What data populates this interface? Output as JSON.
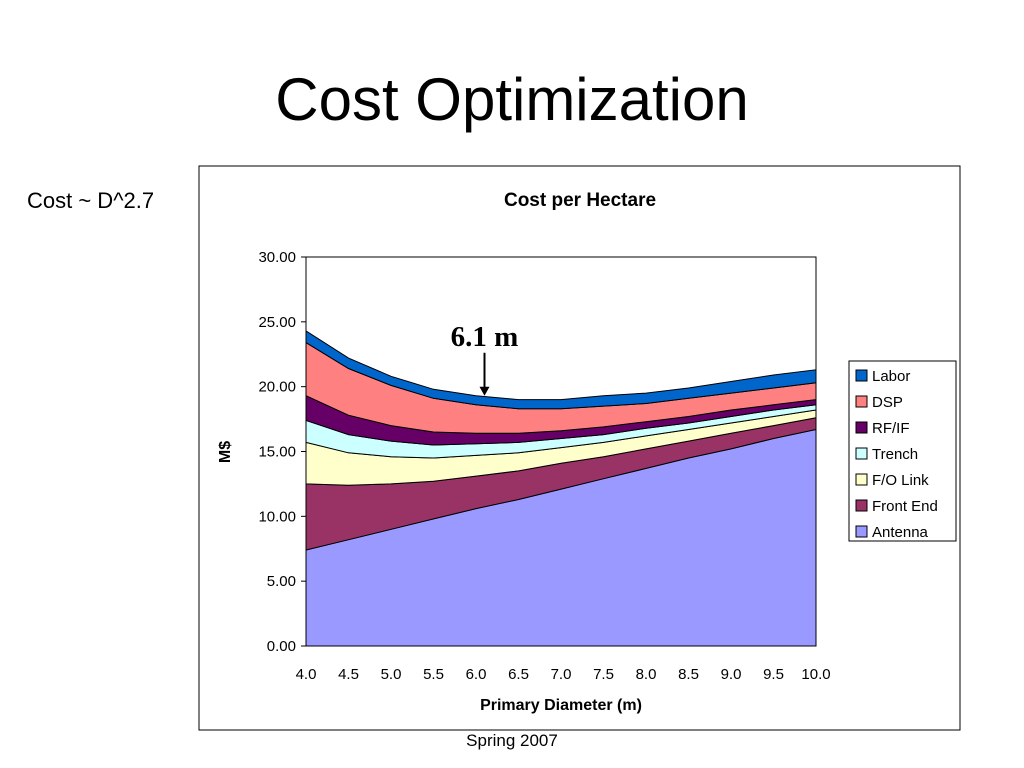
{
  "slide": {
    "title": "Cost Optimization",
    "side_note": "Cost ~ D^2.7",
    "footer": "Spring 2007"
  },
  "chart_data": {
    "type": "area",
    "stacked": true,
    "title": "Cost per Hectare",
    "xlabel": "Primary Diameter (m)",
    "ylabel": "M$",
    "x": [
      "4.0",
      "4.5",
      "5.0",
      "5.5",
      "6.0",
      "6.5",
      "7.0",
      "7.5",
      "8.0",
      "8.5",
      "9.0",
      "9.5",
      "10.0"
    ],
    "ylim": [
      0,
      30
    ],
    "yticks": [
      "0.00",
      "5.00",
      "10.00",
      "15.00",
      "20.00",
      "25.00",
      "30.00"
    ],
    "grid": true,
    "legend_position": "right",
    "series": [
      {
        "name": "Antenna",
        "color": "#9999FF",
        "values": [
          7.4,
          8.2,
          9.0,
          9.8,
          10.6,
          11.3,
          12.1,
          12.9,
          13.7,
          14.5,
          15.2,
          16.0,
          16.7
        ]
      },
      {
        "name": "Front End",
        "color": "#993366",
        "values": [
          5.1,
          4.2,
          3.5,
          2.9,
          2.5,
          2.2,
          2.0,
          1.7,
          1.5,
          1.3,
          1.2,
          1.0,
          0.9
        ]
      },
      {
        "name": "F/O Link",
        "color": "#FFFFCC",
        "values": [
          3.2,
          2.5,
          2.1,
          1.8,
          1.6,
          1.4,
          1.2,
          1.1,
          1.0,
          0.9,
          0.8,
          0.7,
          0.6
        ]
      },
      {
        "name": "Trench",
        "color": "#CCFFFF",
        "values": [
          1.7,
          1.4,
          1.2,
          1.0,
          0.9,
          0.8,
          0.7,
          0.6,
          0.6,
          0.5,
          0.5,
          0.5,
          0.4
        ]
      },
      {
        "name": "RF/IF",
        "color": "#660066",
        "values": [
          1.9,
          1.5,
          1.2,
          1.0,
          0.8,
          0.7,
          0.6,
          0.6,
          0.5,
          0.5,
          0.5,
          0.4,
          0.4
        ]
      },
      {
        "name": "DSP",
        "color": "#FF8080",
        "values": [
          4.1,
          3.6,
          3.1,
          2.6,
          2.2,
          1.9,
          1.7,
          1.6,
          1.4,
          1.4,
          1.3,
          1.3,
          1.3
        ]
      },
      {
        "name": "Labor",
        "color": "#0066CC",
        "values": [
          0.9,
          0.8,
          0.7,
          0.7,
          0.7,
          0.7,
          0.7,
          0.8,
          0.8,
          0.8,
          0.9,
          1.0,
          1.0
        ]
      }
    ],
    "legend_order": [
      "Labor",
      "DSP",
      "RF/IF",
      "Trench",
      "F/O Link",
      "Front End",
      "Antenna"
    ],
    "annotation": {
      "text": "6.1 m",
      "x": 6.1,
      "arrow_top_y": 23.0,
      "arrow_bottom_y": 19.3
    }
  }
}
